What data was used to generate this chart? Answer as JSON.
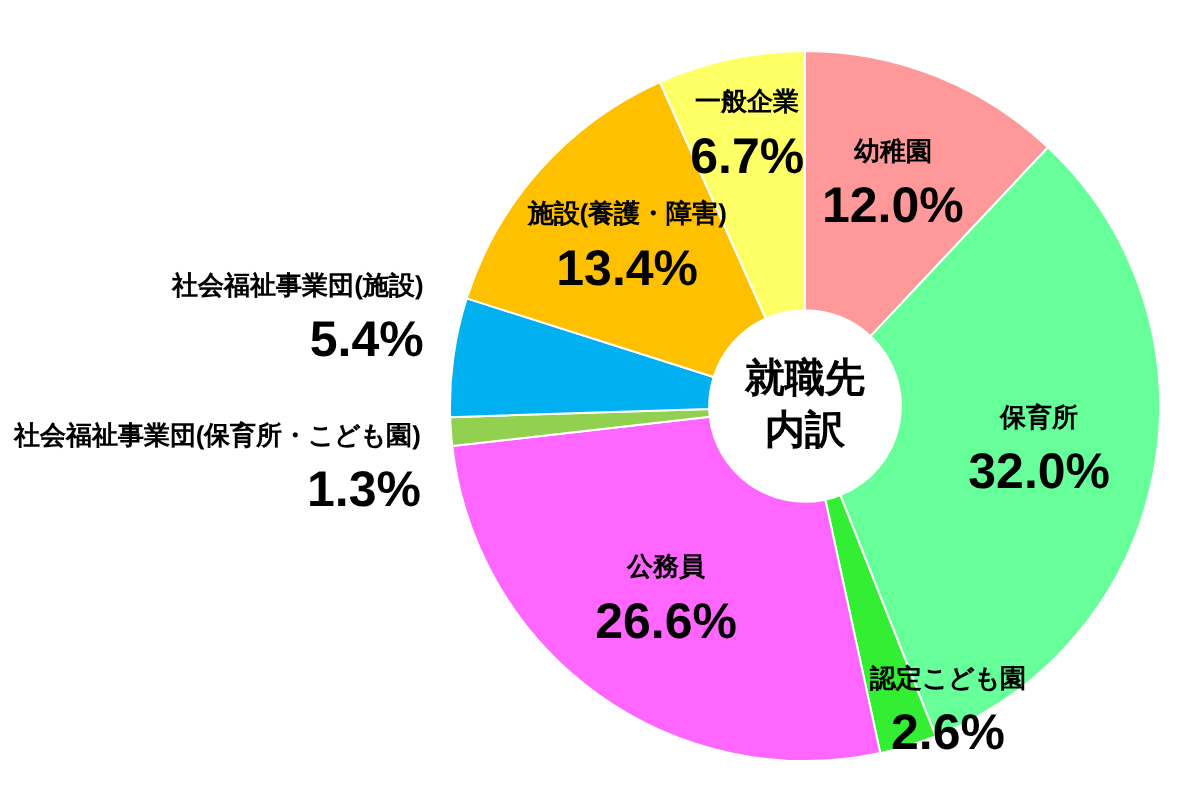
{
  "chart_data": {
    "type": "donut",
    "categories": [
      "幼稚園",
      "保育所",
      "認定こども園",
      "公務員",
      "社会福祉事業団(保育所・こども園)",
      "社会福祉事業団(施設)",
      "施設(養護・障害)",
      "一般企業"
    ],
    "values": [
      12.0,
      32.0,
      2.6,
      26.6,
      1.3,
      5.4,
      13.4,
      6.7
    ],
    "value_labels": [
      "12.0%",
      "32.0%",
      "2.6%",
      "26.6%",
      "1.3%",
      "5.4%",
      "13.4%",
      "6.7%"
    ],
    "colors": [
      "#ff9999",
      "#66ff99",
      "#33ee33",
      "#ff66ff",
      "#92d050",
      "#00b0f0",
      "#ffc000",
      "#ffff66"
    ],
    "annotations": [
      "就職先",
      "内訳"
    ],
    "legend": false
  }
}
